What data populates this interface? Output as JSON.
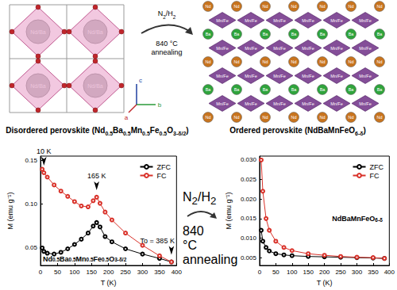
{
  "diagram": {
    "structures": [
      {
        "caption": "Disordered perovskite (Nd0.5Ba0.5Mn0.5Fe0.5O3-δ/2)",
        "site_labels": [
          "Nd/Ba"
        ]
      },
      {
        "caption": "Ordered perovskite (NdBaMnFeO6-δ)",
        "site_labels": [
          "Nd",
          "Ba",
          "Mn/Fe"
        ]
      }
    ],
    "axes_labels": [
      "a",
      "b",
      "c"
    ],
    "process": [
      "N2/H2",
      "840 °C",
      "annealing"
    ]
  },
  "chart_data": [
    {
      "type": "line",
      "x_label": "T (K)",
      "y_label": "M (emu g⁻¹)",
      "x": [
        5,
        10,
        20,
        40,
        60,
        80,
        100,
        120,
        140,
        155,
        165,
        175,
        190,
        210,
        250,
        300,
        350,
        385
      ],
      "series": [
        {
          "name": "ZFC",
          "color": "#000000",
          "marker": "open circle",
          "values": [
            0.05,
            0.046,
            0.044,
            0.043,
            0.045,
            0.049,
            0.054,
            0.06,
            0.067,
            0.075,
            0.079,
            0.074,
            0.063,
            0.057,
            0.049,
            0.043,
            0.038,
            0.034
          ]
        },
        {
          "name": "FC",
          "color": "#d9322a",
          "marker": "open circle",
          "values": [
            0.14,
            0.136,
            0.131,
            0.122,
            0.115,
            0.109,
            0.103,
            0.098,
            0.097,
            0.104,
            0.108,
            0.101,
            0.091,
            0.082,
            0.067,
            0.053,
            0.041,
            0.034
          ]
        }
      ],
      "xlim": [
        0,
        400
      ],
      "xticks": [
        0,
        50,
        100,
        150,
        200,
        250,
        300,
        350,
        400
      ],
      "ylim": [
        0.03,
        0.155
      ],
      "yticks": [
        0.05,
        {
          "value": 0.1,
          "label": "0.10"
        },
        0.15
      ],
      "grid": false,
      "legend": "upper right",
      "annotations": [
        {
          "text": "10 K",
          "x": 10,
          "y": 0.136
        },
        {
          "text": "165 K",
          "x": 165,
          "y": 0.108
        },
        {
          "text": "To = 385 K",
          "x": 385,
          "y": 0.034
        },
        {
          "text": "Nd0.5Ba0.5Mn0.5Fe0.5O3-δ/2"
        }
      ]
    },
    {
      "type": "line",
      "x_label": "T (K)",
      "y_label": "M (emu g⁻¹)",
      "x": [
        5,
        10,
        20,
        30,
        50,
        75,
        100,
        150,
        200,
        250,
        300,
        350,
        385
      ],
      "series": [
        {
          "name": "ZFC",
          "color": "#000000",
          "marker": "open circle",
          "values": [
            0.012,
            0.0092,
            0.0076,
            0.0067,
            0.006,
            0.0057,
            0.0055,
            0.0053,
            0.0052,
            0.0051,
            0.005,
            0.0049,
            0.0048
          ]
        },
        {
          "name": "FC",
          "color": "#d9322a",
          "marker": "open circle",
          "values": [
            0.03,
            0.022,
            0.015,
            0.012,
            0.0092,
            0.0076,
            0.0068,
            0.006,
            0.0056,
            0.0053,
            0.0051,
            0.005,
            0.0048
          ]
        }
      ],
      "xlim": [
        0,
        400
      ],
      "xticks": [
        0,
        50,
        100,
        150,
        200,
        250,
        300,
        350,
        400
      ],
      "ylim": [
        0.003,
        0.031
      ],
      "yticks": [
        0.005,
        {
          "value": 0.01,
          "label": "0.010"
        },
        0.015,
        {
          "value": 0.02,
          "label": "0.020"
        },
        0.025,
        {
          "value": 0.03,
          "label": "0.030"
        }
      ],
      "grid": false,
      "legend": "upper right",
      "annotations": [
        {
          "text": "NdBaMnFeO6-δ"
        }
      ]
    }
  ]
}
